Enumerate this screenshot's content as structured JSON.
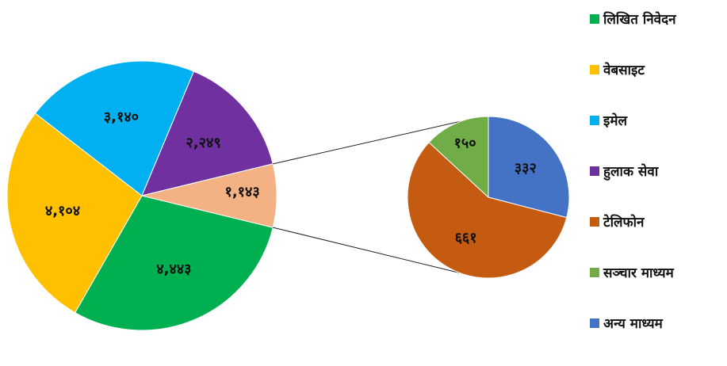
{
  "chart_data": {
    "type": "pie",
    "variant": "pie-of-pie",
    "series": [
      {
        "name": "लिखित निवेदन",
        "value": 4443,
        "label": "४,४४३",
        "color": "#00b050"
      },
      {
        "name": "वेबसाइट",
        "value": 4104,
        "label": "४,१०४",
        "color": "#ffc000"
      },
      {
        "name": "इमेल",
        "value": 3140,
        "label": "३,१४०",
        "color": "#00b0f0"
      },
      {
        "name": "हुलाक सेवा",
        "value": 2249,
        "label": "२,२४९",
        "color": "#7030a0"
      },
      {
        "name": "टेलिफोन",
        "value": 661,
        "label": "६६१",
        "color": "#c55a11"
      },
      {
        "name": "सञ्चार माध्यम",
        "value": 150,
        "label": "१५०",
        "color": "#70ad47"
      },
      {
        "name": "अन्य माध्यम",
        "value": 332,
        "label": "३३२",
        "color": "#4472c4"
      }
    ],
    "other": {
      "value": 1143,
      "label": "१,१४३",
      "color": "#f4b183"
    },
    "main_slices": [
      0,
      1,
      2,
      3
    ],
    "secondary_slices": [
      6,
      4,
      5
    ],
    "legend_position": "right"
  }
}
